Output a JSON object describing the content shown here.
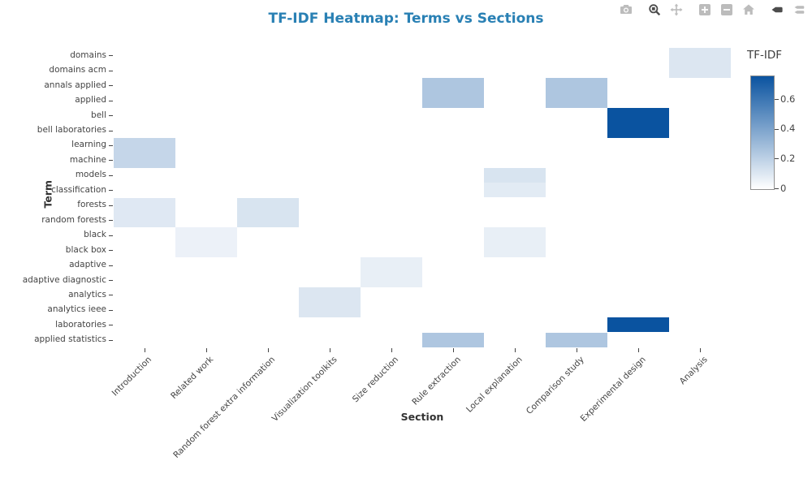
{
  "page": {
    "background": "#ffffff"
  },
  "modebar": {
    "icons": [
      {
        "name": "camera-icon",
        "active": false,
        "group_start": false
      },
      {
        "name": "zoom-icon",
        "active": true,
        "group_start": true
      },
      {
        "name": "pan-icon",
        "active": false,
        "group_start": false
      },
      {
        "name": "zoom-in-icon",
        "active": false,
        "group_start": true
      },
      {
        "name": "zoom-out-icon",
        "active": false,
        "group_start": false
      },
      {
        "name": "home-icon",
        "active": false,
        "group_start": false
      },
      {
        "name": "hover-closest-icon",
        "active": true,
        "group_start": true
      },
      {
        "name": "compare-hover-icon",
        "active": false,
        "group_start": false
      }
    ]
  },
  "chart_data": {
    "type": "heatmap",
    "title": "TF-IDF Heatmap: Terms vs Sections",
    "title_color": "#2980b4",
    "xlabel": "Section",
    "ylabel": "Term",
    "grid": false,
    "legend_position": "right",
    "x_categories": [
      "Introduction",
      "Related work",
      "Random forest extra information",
      "Visualization toolkits",
      "Size reduction",
      "Rule extraction",
      "Local explanation",
      "Comparison study",
      "Experimental design",
      "Analysis"
    ],
    "y_categories": [
      "domains",
      "domains acm",
      "annals applied",
      "applied",
      "bell",
      "bell laboratories",
      "learning",
      "machine",
      "models",
      "classification",
      "forests",
      "random forests",
      "black",
      "black box",
      "adaptive",
      "adaptive diagnostic",
      "analytics",
      "analytics ieee",
      "laboratories",
      "applied statistics"
    ],
    "values": [
      [
        0,
        0,
        0,
        0,
        0,
        0,
        0,
        0,
        0,
        0.11
      ],
      [
        0,
        0,
        0,
        0,
        0,
        0,
        0,
        0,
        0,
        0.11
      ],
      [
        0,
        0,
        0,
        0,
        0,
        0.25,
        0,
        0.25,
        0,
        0
      ],
      [
        0,
        0,
        0,
        0,
        0,
        0.25,
        0,
        0.25,
        0,
        0
      ],
      [
        0,
        0,
        0,
        0,
        0,
        0,
        0,
        0,
        0.76,
        0
      ],
      [
        0,
        0,
        0,
        0,
        0,
        0,
        0,
        0,
        0.76,
        0
      ],
      [
        0.18,
        0,
        0,
        0,
        0,
        0,
        0,
        0,
        0,
        0
      ],
      [
        0.18,
        0,
        0,
        0,
        0,
        0,
        0,
        0,
        0,
        0
      ],
      [
        0,
        0,
        0,
        0,
        0,
        0,
        0.12,
        0,
        0,
        0
      ],
      [
        0,
        0,
        0,
        0,
        0,
        0,
        0.09,
        0,
        0,
        0
      ],
      [
        0.1,
        0,
        0.12,
        0,
        0,
        0,
        0,
        0,
        0,
        0
      ],
      [
        0.1,
        0,
        0.12,
        0,
        0,
        0,
        0,
        0,
        0,
        0
      ],
      [
        0,
        0.06,
        0,
        0,
        0,
        0,
        0.07,
        0,
        0,
        0
      ],
      [
        0,
        0.06,
        0,
        0,
        0,
        0,
        0.07,
        0,
        0,
        0
      ],
      [
        0,
        0,
        0,
        0,
        0.07,
        0,
        0,
        0,
        0,
        0
      ],
      [
        0,
        0,
        0,
        0,
        0.07,
        0,
        0,
        0,
        0,
        0
      ],
      [
        0,
        0,
        0,
        0.11,
        0,
        0,
        0,
        0,
        0,
        0
      ],
      [
        0,
        0,
        0,
        0.11,
        0,
        0,
        0,
        0,
        0,
        0
      ],
      [
        0,
        0,
        0,
        0,
        0,
        0,
        0,
        0,
        0.76,
        0
      ],
      [
        0,
        0,
        0,
        0,
        0,
        0.25,
        0,
        0.25,
        0,
        0
      ]
    ],
    "colorscale": {
      "low": "#ffffff",
      "high": "#0a53a0"
    },
    "colorbar": {
      "title": "TF-IDF",
      "vmin": 0,
      "vmax": 0.76,
      "ticks": [
        0,
        0.2,
        0.4,
        0.6
      ],
      "tick_labels": [
        "0",
        "0.2",
        "0.4",
        "0.6"
      ]
    }
  }
}
